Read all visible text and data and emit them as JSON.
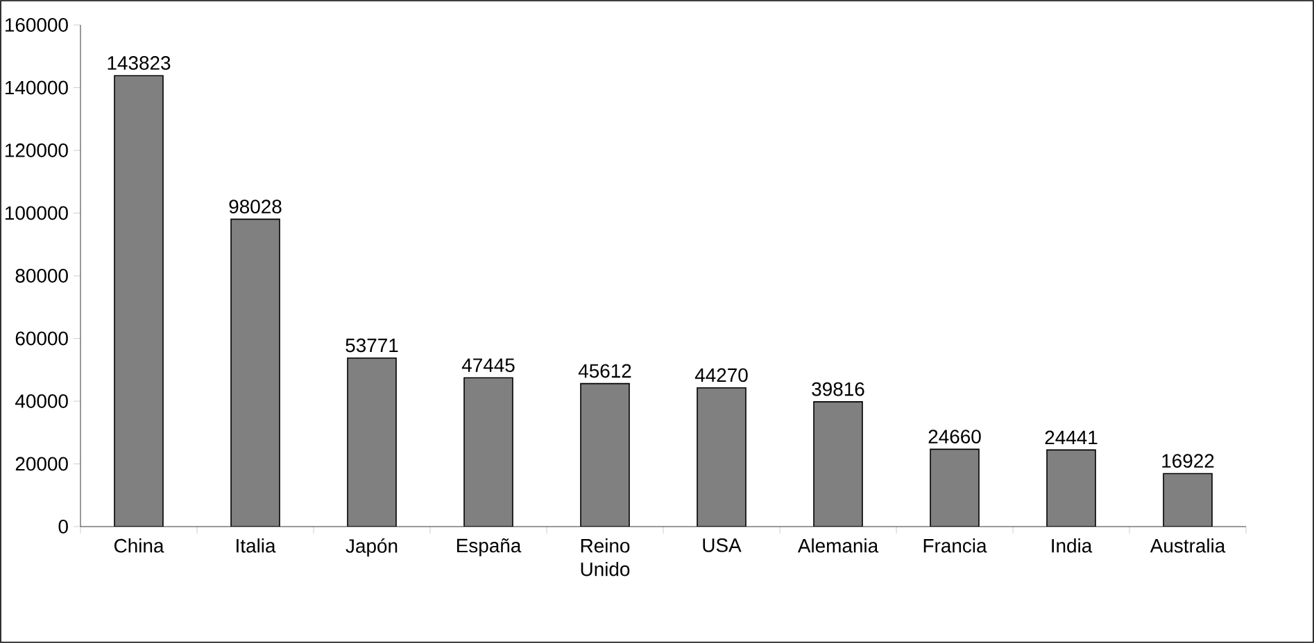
{
  "chart_data": {
    "type": "bar",
    "categories": [
      "China",
      "Italia",
      "Japón",
      "España",
      "Reino Unido",
      "USA",
      "Alemania",
      "Francia",
      "India",
      "Australia"
    ],
    "values": [
      143823,
      98028,
      53771,
      47445,
      45612,
      44270,
      39816,
      24660,
      24441,
      16922
    ],
    "color": "#808080",
    "ylim": [
      0,
      160000
    ],
    "yticks": [
      0,
      20000,
      40000,
      60000,
      80000,
      100000,
      120000,
      140000,
      160000
    ],
    "data_labels": true,
    "grid": false
  }
}
